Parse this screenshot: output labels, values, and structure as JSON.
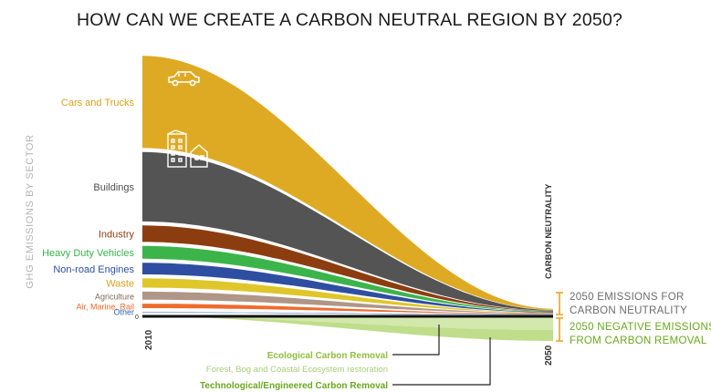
{
  "title": "HOW CAN WE CREATE A CARBON NEUTRAL REGION BY 2050?",
  "y_axis_label": "GHG EMISSIONS BY SECTOR",
  "zero_label": "0",
  "year_start": "2010",
  "year_end": "2050",
  "carbon_neutrality_label": "CARBON NEUTRALITY",
  "emissions_note": [
    "2050 EMISSIONS FOR",
    "CARBON NEUTRALITY"
  ],
  "negative_note": [
    "2050 NEGATIVE EMISSIONS",
    "FROM CARBON REMOVAL"
  ],
  "ecological_label": "Ecological Carbon Removal",
  "ecological_sub": "Forest, Bog and Coastal Ecosystem restoration",
  "technological_label": "Technological/Engineered Carbon Removal",
  "icons": {
    "cars": "car-icon",
    "buildings": "buildings-icon"
  },
  "colors": {
    "removal_light": "#d3e8ac",
    "removal_mid": "#bfdd8a",
    "removal_text": "#6aa81f",
    "removal_sub": "#9dc46a",
    "bracket": "#e7a52a",
    "note_text": "#6d6d6d"
  },
  "chart_data": {
    "type": "area",
    "stacking": "stacked",
    "x": [
      2010,
      2050
    ],
    "xlabel": "",
    "ylabel": "GHG EMISSIONS BY SECTOR",
    "grid": false,
    "series": [
      {
        "name": "Cars and Trucks",
        "color": "#dfaa23",
        "label_color": "#d9a21c",
        "values": [
          80,
          1
        ]
      },
      {
        "name": "Buildings",
        "color": "#545454",
        "label_color": "#4d4d4d",
        "values": [
          61,
          0.8
        ]
      },
      {
        "name": "Industry",
        "color": "#8c3d0f",
        "label_color": "#8c3d0f",
        "values": [
          17,
          0.5
        ]
      },
      {
        "name": "Heavy Duty Vehicles",
        "color": "#3bb54a",
        "label_color": "#37b34a",
        "values": [
          14,
          0.5
        ]
      },
      {
        "name": "Non-road Engines",
        "color": "#2e4ea1",
        "label_color": "#2d4fa1",
        "values": [
          13,
          0.5
        ]
      },
      {
        "name": "Waste",
        "color": "#dfc62a",
        "label_color": "#d9a21c",
        "values": [
          11,
          0.4
        ]
      },
      {
        "name": "Agriculture",
        "color": "#b09687",
        "label_color": "#7f6a5c",
        "values": [
          10,
          0.5
        ]
      },
      {
        "name": "Air, Marine, Rail",
        "color": "#ef6b2c",
        "label_color": "#ee6a2a",
        "values": [
          7,
          0.4
        ]
      },
      {
        "name": "Other",
        "color": "#4a7fc6",
        "label_color": "#2e63b6",
        "values": [
          2,
          0.2
        ]
      },
      {
        "name": "Ecological Carbon Removal",
        "color": "#d3e8ac",
        "values": [
          0,
          -15
        ]
      },
      {
        "name": "Technological/Engineered Carbon Removal",
        "color": "#bfdd8a",
        "values": [
          0,
          -12
        ]
      }
    ]
  }
}
